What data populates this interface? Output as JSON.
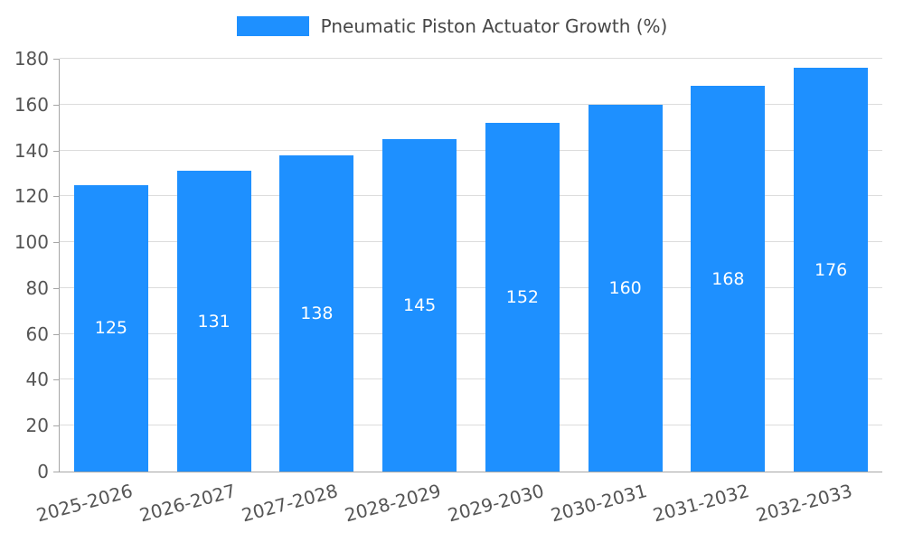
{
  "chart_data": {
    "type": "bar",
    "title": "Pneumatic Piston Actuator Growth (%)",
    "categories": [
      "2025-2026",
      "2026-2027",
      "2027-2028",
      "2028-2029",
      "2029-2030",
      "2030-2031",
      "2031-2032",
      "2032-2033"
    ],
    "values": [
      125,
      131,
      138,
      145,
      152,
      160,
      168,
      176
    ],
    "xlabel": "",
    "ylabel": "",
    "ylim": [
      0,
      180
    ],
    "ytick_step": 20,
    "yticks": [
      0,
      20,
      40,
      60,
      80,
      100,
      120,
      140,
      160,
      180
    ],
    "grid": "horizontal",
    "legend_position": "top-center",
    "value_labels": "inside-middle",
    "colors": {
      "bar": "#1e90ff",
      "value_label": "#ffffff",
      "axis_text": "#555555",
      "grid": "#dcdcdc",
      "axis_line": "#a6a6a6",
      "legend_text": "#474747"
    }
  }
}
